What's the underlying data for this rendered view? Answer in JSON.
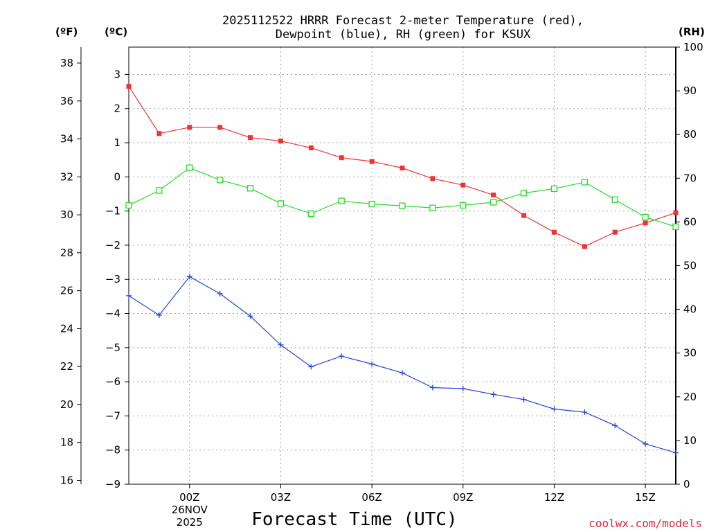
{
  "chart_data": {
    "type": "line",
    "title_line1": "2025112522 HRRR Forecast 2-meter Temperature (red),",
    "title_line2": "Dewpoint (blue), RH (green) for KSUX",
    "xlabel": "Forecast Time (UTC)",
    "credit": "coolwx.com/models",
    "credit_color": "#e8223a",
    "left_outer_unit": "(ºF)",
    "left_inner_unit": "(ºC)",
    "right_unit": "(RH)",
    "x": [
      -2,
      -1,
      0,
      1,
      2,
      3,
      4,
      5,
      6,
      7,
      8,
      9,
      10,
      11,
      12,
      13,
      14,
      15,
      16
    ],
    "x_ticks": [
      {
        "x": 0,
        "label": "00Z",
        "sub1": "26NOV",
        "sub2": "2025"
      },
      {
        "x": 3,
        "label": "03Z"
      },
      {
        "x": 6,
        "label": "06Z"
      },
      {
        "x": 9,
        "label": "09Z"
      },
      {
        "x": 12,
        "label": "12Z"
      },
      {
        "x": 15,
        "label": "15Z"
      }
    ],
    "xlim": [
      -2,
      16
    ],
    "celsius_ylim": [
      -9,
      3.8
    ],
    "fahrenheit_ticks": [
      16,
      18,
      20,
      22,
      24,
      26,
      28,
      30,
      32,
      34,
      36,
      38
    ],
    "celsius_ticks": [
      3,
      2,
      1,
      0,
      -1,
      -2,
      -3,
      -4,
      -5,
      -6,
      -7,
      -8,
      -9
    ],
    "rh_ylim": [
      0,
      100
    ],
    "rh_ticks": [
      0,
      10,
      20,
      30,
      40,
      50,
      60,
      70,
      80,
      90,
      100
    ],
    "series": [
      {
        "name": "Temperature",
        "unit": "C",
        "color": "#ee3333",
        "marker": "filled-square",
        "values": [
          2.65,
          1.27,
          1.45,
          1.45,
          1.15,
          1.05,
          0.85,
          0.56,
          0.45,
          0.26,
          -0.05,
          -0.24,
          -0.53,
          -1.13,
          -1.62,
          -2.04,
          -1.62,
          -1.35,
          -1.05
        ]
      },
      {
        "name": "Dewpoint",
        "unit": "C",
        "color": "#2244dd",
        "marker": "plus",
        "values": [
          -3.48,
          -4.05,
          -2.92,
          -3.42,
          -4.08,
          -4.92,
          -5.56,
          -5.25,
          -5.48,
          -5.74,
          -6.17,
          -6.2,
          -6.37,
          -6.52,
          -6.8,
          -6.89,
          -7.28,
          -7.82,
          -8.08
        ]
      },
      {
        "name": "RH",
        "unit": "%",
        "color": "#22dd22",
        "marker": "open-square",
        "values": [
          63.8,
          67.2,
          72.4,
          69.6,
          67.7,
          64.2,
          61.9,
          64.8,
          64.1,
          63.7,
          63.2,
          63.8,
          64.5,
          66.6,
          67.6,
          69.1,
          65.1,
          61.1,
          58.9
        ]
      }
    ]
  }
}
